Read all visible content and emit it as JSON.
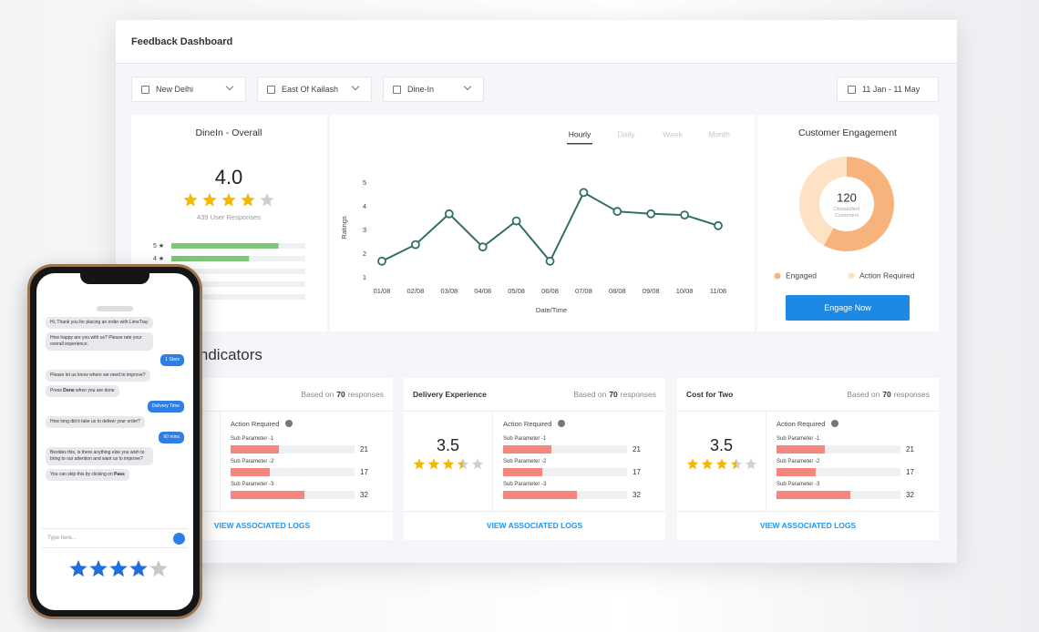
{
  "header": {
    "title": "Feedback Dashboard"
  },
  "filters": [
    "New Delhi",
    "East Of Kailash",
    "Dine-In"
  ],
  "date_range": "11 Jan - 11 May",
  "overall": {
    "title": "DineIn - Overall",
    "rating": {
      "value": 4,
      "label": "4.0"
    },
    "max_stars": 5,
    "responses": "439 User Responses",
    "rows": [
      {
        "label": "5 ★",
        "share": 80
      },
      {
        "label": "4 ★",
        "share": 58
      },
      {
        "label": null,
        "share": 0
      },
      {
        "label": null,
        "share": 0
      },
      {
        "label": null,
        "share": 0
      }
    ],
    "color": "#7dc67a"
  },
  "trend": {
    "type": "line",
    "tabs": [
      "Hourly",
      "Daily",
      "Week",
      "Month"
    ],
    "active_tab": 0,
    "y_label": "Ratings",
    "x_label": "Date/Time",
    "categories": [
      "01/08",
      "02/08",
      "03/08",
      "04/08",
      "05/08",
      "06/08",
      "07/08",
      "08/08",
      "09/08",
      "10/08",
      "11/08"
    ],
    "values": [
      1.7,
      2.4,
      3.7,
      2.3,
      3.4,
      1.7,
      4.6,
      3.8,
      3.7,
      3.65,
      3.2
    ],
    "color": "#2f6f66",
    "ylim": [
      0.8,
      5
    ],
    "yticks": [
      1,
      2,
      3,
      4,
      5
    ]
  },
  "engagement": {
    "type": "pie",
    "title": "Customer Engagement",
    "center_value": 120,
    "center_label": "Dissatisfied Customers",
    "series": [
      {
        "name": "Engaged",
        "color": "#f6b47c",
        "value": 58
      },
      {
        "name": "Action Required",
        "color": "#fde2c4",
        "value": 42
      }
    ],
    "button": "Engage Now"
  },
  "indicators": {
    "heading": "e Indicators",
    "color": "#f4867e",
    "max_stars": 5,
    "cards": [
      {
        "title": null,
        "based_on": "Based on",
        "count": 70,
        "responses": "responses",
        "rating": null,
        "action_required": "Action Required",
        "params": [
          {
            "name": "Sub Parameter -1",
            "value": 21
          },
          {
            "name": "Sub Parameter -2",
            "value": 17
          },
          {
            "name": "Sub Parameter -3",
            "value": 32
          }
        ],
        "link": "VIEW ASSOCIATED LOGS"
      },
      {
        "title": "Delivery Experience",
        "based_on": "Based on",
        "count": 70,
        "responses": "responses",
        "rating": 3.5,
        "action_required": "Action Required",
        "params": [
          {
            "name": "Sub Parameter -1",
            "value": 21
          },
          {
            "name": "Sub Parameter -2",
            "value": 17
          },
          {
            "name": "Sub Parameter -3",
            "value": 32
          }
        ],
        "link": "VIEW ASSOCIATED LOGS"
      },
      {
        "title": "Cost for Two",
        "based_on": "Based on",
        "count": 70,
        "responses": "responses",
        "rating": 3.5,
        "action_required": "Action Required",
        "params": [
          {
            "name": "Sub Parameter -1",
            "value": 21
          },
          {
            "name": "Sub Parameter -2",
            "value": 17
          },
          {
            "name": "Sub Parameter -3",
            "value": 32
          }
        ],
        "link": "VIEW ASSOCIATED LOGS"
      }
    ]
  },
  "phone": {
    "messages": [
      {
        "side": "left",
        "parts": [
          "Hi, Thank you for placing an order with LimeTray"
        ]
      },
      {
        "side": "left",
        "parts": [
          "How happy are you with us? Please rate your overall experience."
        ]
      },
      {
        "side": "right",
        "parts": [
          "1 Stars"
        ]
      },
      {
        "side": "left",
        "parts": [
          "Please let us know where we need to improve?"
        ]
      },
      {
        "side": "left",
        "parts": [
          "Press ",
          "Done",
          " when you are done"
        ]
      },
      {
        "side": "right",
        "parts": [
          "Delivery Time"
        ]
      },
      {
        "side": "left",
        "parts": [
          "How long did it take us to deliver your order?"
        ]
      },
      {
        "side": "right",
        "parts": [
          "60 mins"
        ]
      },
      {
        "side": "left",
        "parts": [
          "Besides this, is there anything else you wish to bring to our attention and want us to improve?"
        ]
      },
      {
        "side": "left",
        "parts": [
          "You can skip this by clicking on ",
          "Pass"
        ]
      }
    ],
    "input_placeholder": "Type here...",
    "rating": 4,
    "max_stars": 5,
    "star_color": "#1f6fe0"
  }
}
